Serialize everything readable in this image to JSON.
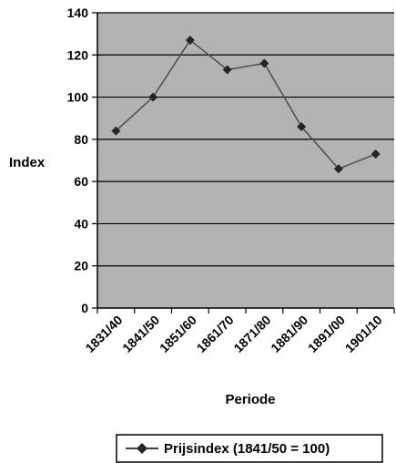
{
  "chart_data": {
    "type": "line",
    "title": "",
    "xlabel": "Periode",
    "ylabel": "Index",
    "categories": [
      "1831/40",
      "1841/50",
      "1851/60",
      "1861/70",
      "1871/80",
      "1881/90",
      "1891/00",
      "1901/10"
    ],
    "series": [
      {
        "name": "Prijsindex (1841/50 = 100)",
        "values": [
          84,
          100,
          127,
          113,
          116,
          86,
          66,
          73
        ]
      }
    ],
    "ylim": [
      0,
      140
    ],
    "yticks": [
      0,
      20,
      40,
      60,
      80,
      100,
      120,
      140
    ],
    "grid": true,
    "legend_position": "bottom",
    "colors": {
      "plot_background": "#b3b3b3",
      "line": "#4d4d4d",
      "marker": "#262626",
      "gridline": "#000000"
    },
    "marker": "diamond-icon"
  }
}
